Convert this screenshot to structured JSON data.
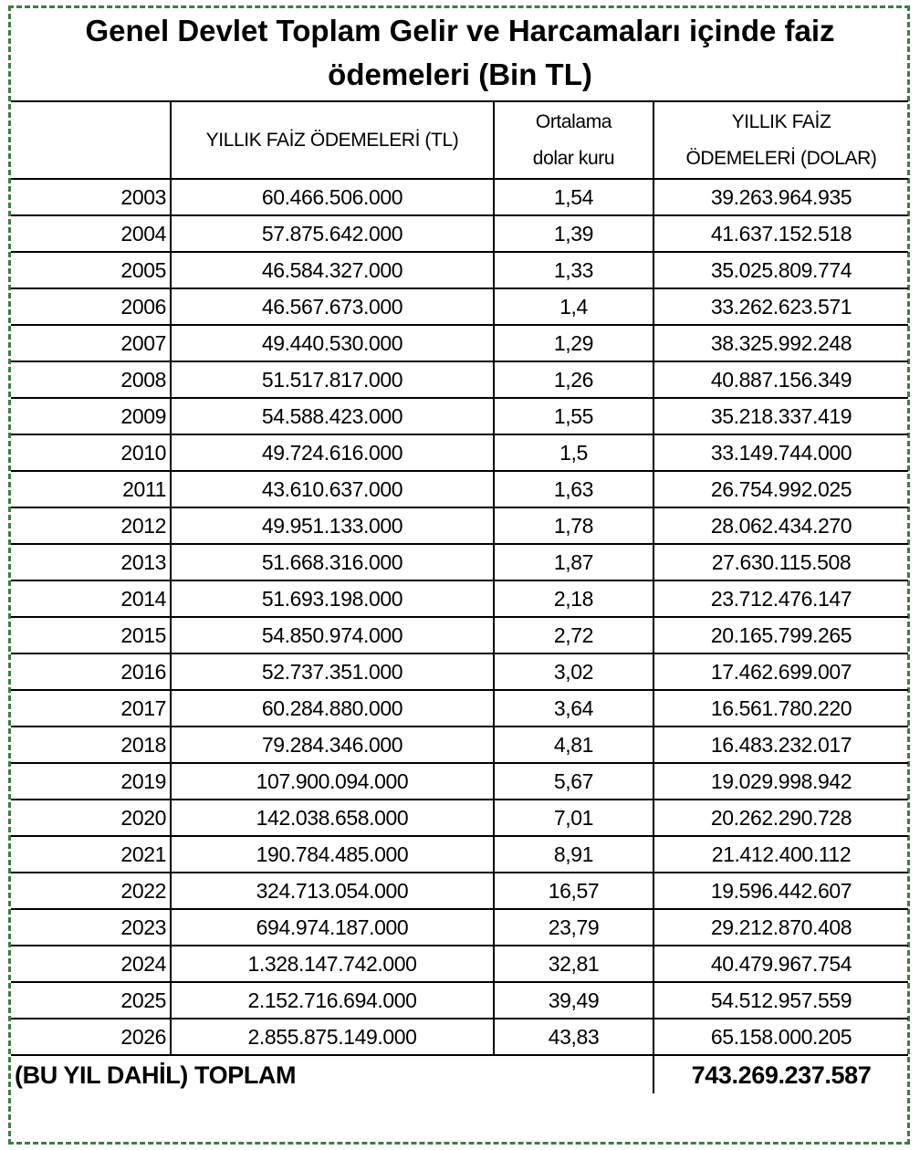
{
  "title_line1": "Genel Devlet Toplam Gelir ve Harcamaları içinde faiz",
  "title_line2": "ödemeleri (Bin TL)",
  "headers": {
    "year": "",
    "tl": "YILLIK FAİZ ÖDEMELERİ (TL)",
    "rate_line1": "Ortalama",
    "rate_line2": "dolar kuru",
    "usd_line1": "YILLIK FAİZ",
    "usd_line2": "ÖDEMELERİ (DOLAR)"
  },
  "rows": [
    {
      "year": "2003",
      "tl": "60.466.506.000",
      "rate": "1,54",
      "usd": "39.263.964.935"
    },
    {
      "year": "2004",
      "tl": "57.875.642.000",
      "rate": "1,39",
      "usd": "41.637.152.518"
    },
    {
      "year": "2005",
      "tl": "46.584.327.000",
      "rate": "1,33",
      "usd": "35.025.809.774"
    },
    {
      "year": "2006",
      "tl": "46.567.673.000",
      "rate": "1,4",
      "usd": "33.262.623.571"
    },
    {
      "year": "2007",
      "tl": "49.440.530.000",
      "rate": "1,29",
      "usd": "38.325.992.248"
    },
    {
      "year": "2008",
      "tl": "51.517.817.000",
      "rate": "1,26",
      "usd": "40.887.156.349"
    },
    {
      "year": "2009",
      "tl": "54.588.423.000",
      "rate": "1,55",
      "usd": "35.218.337.419"
    },
    {
      "year": "2010",
      "tl": "49.724.616.000",
      "rate": "1,5",
      "usd": "33.149.744.000"
    },
    {
      "year": "2011",
      "tl": "43.610.637.000",
      "rate": "1,63",
      "usd": "26.754.992.025"
    },
    {
      "year": "2012",
      "tl": "49.951.133.000",
      "rate": "1,78",
      "usd": "28.062.434.270"
    },
    {
      "year": "2013",
      "tl": "51.668.316.000",
      "rate": "1,87",
      "usd": "27.630.115.508"
    },
    {
      "year": "2014",
      "tl": "51.693.198.000",
      "rate": "2,18",
      "usd": "23.712.476.147"
    },
    {
      "year": "2015",
      "tl": "54.850.974.000",
      "rate": "2,72",
      "usd": "20.165.799.265"
    },
    {
      "year": "2016",
      "tl": "52.737.351.000",
      "rate": "3,02",
      "usd": "17.462.699.007"
    },
    {
      "year": "2017",
      "tl": "60.284.880.000",
      "rate": "3,64",
      "usd": "16.561.780.220"
    },
    {
      "year": "2018",
      "tl": "79.284.346.000",
      "rate": "4,81",
      "usd": "16.483.232.017"
    },
    {
      "year": "2019",
      "tl": "107.900.094.000",
      "rate": "5,67",
      "usd": "19.029.998.942"
    },
    {
      "year": "2020",
      "tl": "142.038.658.000",
      "rate": "7,01",
      "usd": "20.262.290.728"
    },
    {
      "year": "2021",
      "tl": "190.784.485.000",
      "rate": "8,91",
      "usd": "21.412.400.112"
    },
    {
      "year": "2022",
      "tl": "324.713.054.000",
      "rate": "16,57",
      "usd": "19.596.442.607"
    },
    {
      "year": "2023",
      "tl": "694.974.187.000",
      "rate": "23,79",
      "usd": "29.212.870.408"
    },
    {
      "year": "2024",
      "tl": "1.328.147.742.000",
      "rate": "32,81",
      "usd": "40.479.967.754"
    },
    {
      "year": "2025",
      "tl": "2.152.716.694.000",
      "rate": "39,49",
      "usd": "54.512.957.559"
    },
    {
      "year": "2026",
      "tl": "2.855.875.149.000",
      "rate": "43,83",
      "usd": "65.158.000.205"
    }
  ],
  "footer": {
    "label": "(BU YIL DAHİL) TOPLAM",
    "total": "743.269.237.587"
  },
  "colors": {
    "frame": "#3f7a47"
  }
}
